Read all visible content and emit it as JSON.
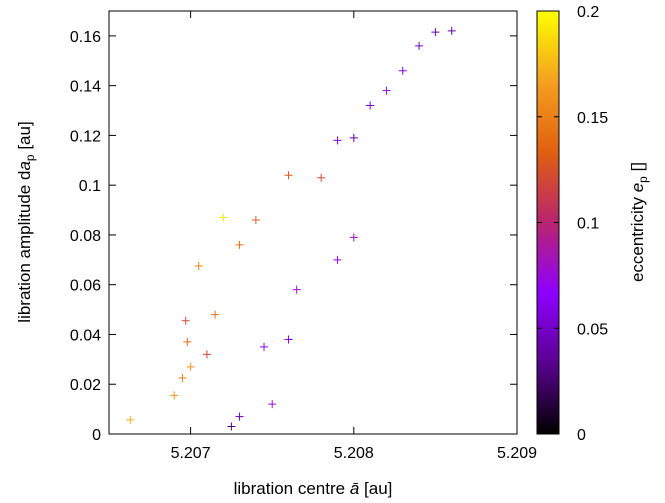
{
  "chart_data": {
    "type": "scatter",
    "marker": "plus",
    "xlabel_parts": [
      "libration centre ",
      "ā",
      " [au]"
    ],
    "ylabel_parts": [
      "libration amplitude d",
      "a",
      "p",
      " [au]"
    ],
    "colorbar_label_parts": [
      "eccentricity ",
      "e",
      "p",
      " []"
    ],
    "xlim": [
      5.2065,
      5.209
    ],
    "ylim": [
      0,
      0.17
    ],
    "x_ticks": [
      5.207,
      5.208,
      5.209
    ],
    "x_tick_labels": [
      "5.207",
      "5.208",
      "5.209"
    ],
    "y_ticks": [
      0,
      0.02,
      0.04,
      0.06,
      0.08,
      0.1,
      0.12,
      0.14,
      0.16
    ],
    "y_tick_labels": [
      "0",
      "0.02",
      "0.04",
      "0.06",
      "0.08",
      "0.1",
      "0.12",
      "0.14",
      "0.16"
    ],
    "colorbar_range": [
      0,
      0.2
    ],
    "colorbar_ticks": [
      0,
      0.05,
      0.1,
      0.15,
      0.2
    ],
    "colorbar_tick_labels": [
      "0",
      "0.05",
      "0.1",
      "0.15",
      "0.2"
    ],
    "colormap_stops": [
      "#000000",
      "#5a0090",
      "#8f00ff",
      "#b8256e",
      "#e06010",
      "#f5a020",
      "#ffff00"
    ],
    "grid": false,
    "legend": "none",
    "points": [
      [
        5.20663,
        0.0057,
        0.17
      ],
      [
        5.2069,
        0.0155,
        0.16
      ],
      [
        5.20695,
        0.0225,
        0.15
      ],
      [
        5.207,
        0.027,
        0.16
      ],
      [
        5.20698,
        0.037,
        0.14
      ],
      [
        5.20697,
        0.0455,
        0.12
      ],
      [
        5.20705,
        0.0675,
        0.15
      ],
      [
        5.2072,
        0.087,
        0.19
      ],
      [
        5.2073,
        0.076,
        0.14
      ],
      [
        5.2074,
        0.086,
        0.13
      ],
      [
        5.2076,
        0.104,
        0.13
      ],
      [
        5.2078,
        0.103,
        0.12
      ],
      [
        5.2075,
        0.012,
        0.08
      ],
      [
        5.2076,
        0.038,
        0.06
      ],
      [
        5.2079,
        0.07,
        0.07
      ],
      [
        5.208,
        0.079,
        0.08
      ],
      [
        5.2085,
        0.1615,
        0.04
      ],
      [
        5.2086,
        0.162,
        0.04
      ],
      [
        5.2084,
        0.156,
        0.05
      ],
      [
        5.2083,
        0.146,
        0.06
      ],
      [
        5.2081,
        0.132,
        0.05
      ],
      [
        5.208,
        0.119,
        0.04
      ],
      [
        5.2079,
        0.118,
        0.06
      ],
      [
        5.2082,
        0.138,
        0.07
      ],
      [
        5.20725,
        0.003,
        0.03
      ],
      [
        5.2073,
        0.007,
        0.04
      ],
      [
        5.20745,
        0.035,
        0.07
      ],
      [
        5.20765,
        0.058,
        0.08
      ],
      [
        5.2071,
        0.032,
        0.12
      ],
      [
        5.20715,
        0.048,
        0.14
      ]
    ]
  }
}
